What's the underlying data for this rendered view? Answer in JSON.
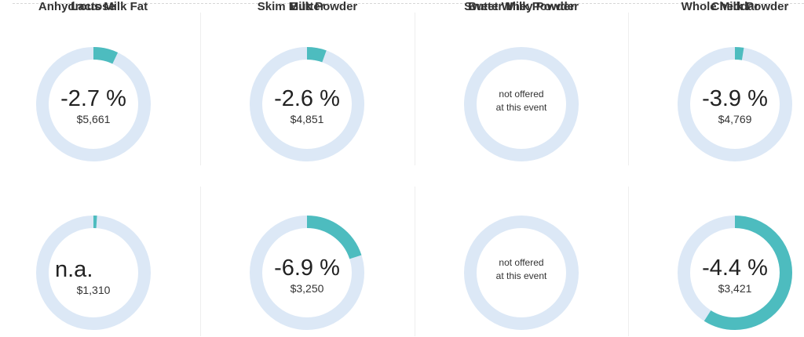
{
  "products": [
    {
      "name": "Anhydrous Milk Fat",
      "change": "-2.7 %",
      "change_value": -2.7,
      "price": "$5,661"
    },
    {
      "name": "Butter",
      "change": "-2.6 %",
      "change_value": -2.6,
      "price": "$4,851"
    },
    {
      "name": "Butter Milk Powder",
      "status_line1": "not offered",
      "status_line2": "at this event"
    },
    {
      "name": "Cheddar",
      "change": "-3.9 %",
      "change_value": -3.9,
      "price": "$4,769"
    },
    {
      "name": "Lactose",
      "change": "n.a.",
      "price": "$1,310"
    },
    {
      "name": "Skim Milk Powder",
      "change": "-6.9 %",
      "change_value": -6.9,
      "price": "$3,250"
    },
    {
      "name": "Sweet Whey Powder",
      "status_line1": "not offered",
      "status_line2": "at this event"
    },
    {
      "name": "Whole Milk Powder",
      "change": "-4.4 %",
      "change_value": -4.4,
      "price": "$3,421"
    }
  ],
  "arc_fill_fraction": [
    0.07,
    0.055,
    0.0,
    0.025,
    0.01,
    0.2,
    0.0,
    0.59
  ],
  "colors": {
    "track": "#dce8f6",
    "arc": "#4dbcbf",
    "divider": "#eeeeee"
  }
}
